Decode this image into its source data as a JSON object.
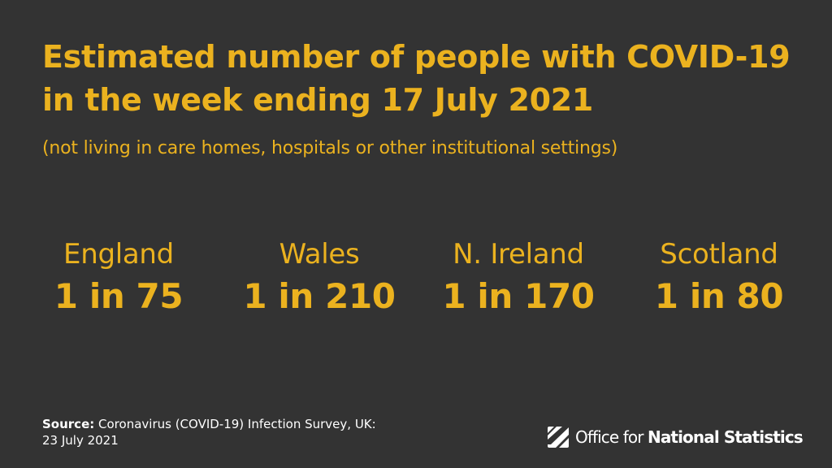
{
  "title": "Estimated number of people with COVID-19 in the week ending 17 July 2021",
  "subtitle": "(not living in care homes, hospitals or other institutional settings)",
  "stats": [
    {
      "name": "England",
      "value": "1 in 75"
    },
    {
      "name": "Wales",
      "value": "1 in 210"
    },
    {
      "name": "N. Ireland",
      "value": "1 in 170"
    },
    {
      "name": "Scotland",
      "value": "1 in 80"
    }
  ],
  "source": {
    "label": "Source:",
    "text": "Coronavirus (COVID-19) Infection Survey, UK:",
    "date": "23 July 2021"
  },
  "logo": {
    "icon": "ons-logo-icon",
    "text_regular": "Office for ",
    "text_bold": "National Statistics"
  },
  "colors": {
    "background": "#333333",
    "accent": "#EBB21F",
    "text": "#FFFFFF"
  }
}
